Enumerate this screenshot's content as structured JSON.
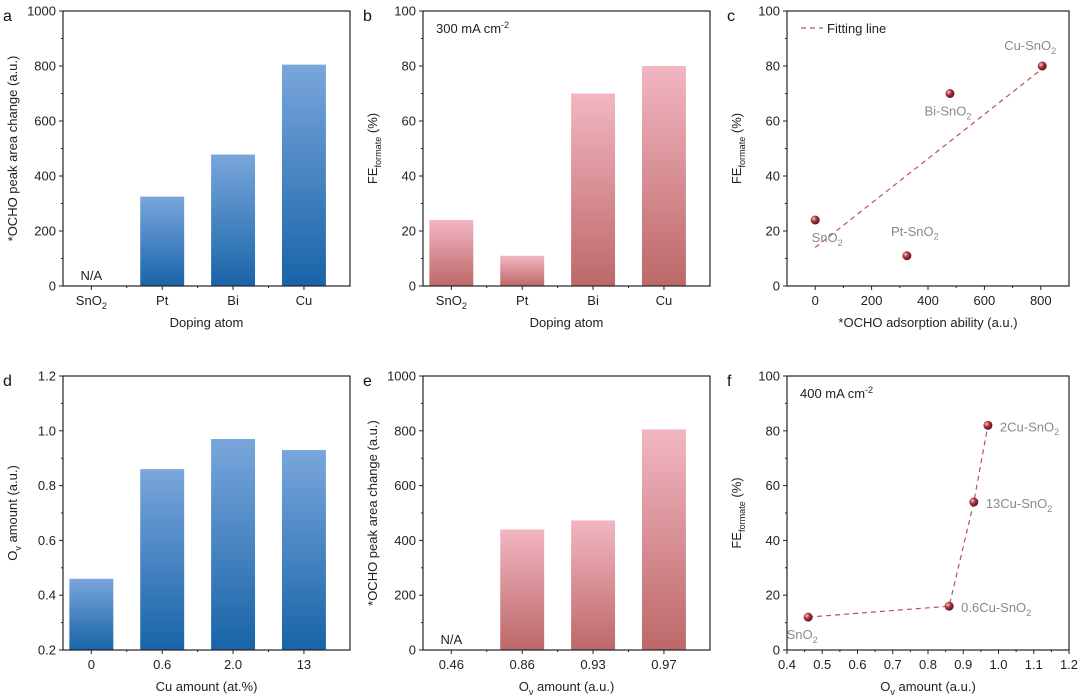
{
  "colors": {
    "blue_top": "#79a6dc",
    "blue_bottom": "#1864a8",
    "pink_top": "#f2b6c2",
    "pink_bottom": "#bd6868",
    "marker": "#a8333c",
    "fit_line": "#c0504d",
    "point_label": "#8a8a8a"
  },
  "chart_data": [
    {
      "panel": "a",
      "type": "bar",
      "categories": [
        "SnO_{2}",
        "Pt",
        "Bi",
        "Cu"
      ],
      "values": [
        null,
        325,
        478,
        805
      ],
      "annotations": [
        {
          "category": "SnO_{2}",
          "text": "N/A"
        }
      ],
      "xlabel": "Doping atom",
      "ylabel": "*OCHO peak area change (a.u.)",
      "ylim": [
        0,
        1000
      ],
      "yticks": [
        0,
        200,
        400,
        600,
        800,
        1000
      ],
      "color": "blue"
    },
    {
      "panel": "b",
      "type": "bar",
      "categories": [
        "SnO_{2}",
        "Pt",
        "Bi",
        "Cu"
      ],
      "values": [
        24,
        11,
        70,
        80
      ],
      "inset_text": "300 mA cm^{-2}",
      "xlabel": "Doping atom",
      "ylabel": "FE_{formate} (%)",
      "ylim": [
        0,
        100
      ],
      "yticks": [
        0,
        20,
        40,
        60,
        80,
        100
      ],
      "color": "pink"
    },
    {
      "panel": "c",
      "type": "scatter",
      "points": [
        {
          "x": 0,
          "y": 24,
          "label": "SnO_{2}"
        },
        {
          "x": 325,
          "y": 11,
          "label": "Pt-SnO_{2}"
        },
        {
          "x": 478,
          "y": 70,
          "label": "Bi-SnO_{2}"
        },
        {
          "x": 805,
          "y": 80,
          "label": "Cu-SnO_{2}"
        }
      ],
      "fit_line": {
        "name": "Fitting line",
        "x": [
          0,
          805
        ],
        "y": [
          14,
          79
        ]
      },
      "legend": "top-left",
      "xlabel": "*OCHO adsorption ability (a.u.)",
      "ylabel": "FE_{formate} (%)",
      "xlim": [
        -100,
        900
      ],
      "ylim": [
        0,
        100
      ],
      "xticks": [
        0,
        200,
        400,
        600,
        800
      ],
      "yticks": [
        0,
        20,
        40,
        60,
        80,
        100
      ]
    },
    {
      "panel": "d",
      "type": "bar",
      "categories": [
        "0",
        "0.6",
        "2.0",
        "13"
      ],
      "values": [
        0.46,
        0.86,
        0.97,
        0.93
      ],
      "xlabel": "Cu amount (at.%)",
      "ylabel": "O_{v} amount (a.u.)",
      "ylim": [
        0.2,
        1.2
      ],
      "yticks": [
        0.2,
        0.4,
        0.6,
        0.8,
        1.0,
        1.2
      ],
      "color": "blue"
    },
    {
      "panel": "e",
      "type": "bar",
      "categories": [
        "0.46",
        "0.86",
        "0.93",
        "0.97"
      ],
      "values": [
        null,
        440,
        473,
        805
      ],
      "annotations": [
        {
          "category": "0.46",
          "text": "N/A"
        }
      ],
      "xlabel": "O_{v} amount (a.u.)",
      "ylabel": "*OCHO peak area change (a.u.)",
      "ylim": [
        0,
        1000
      ],
      "yticks": [
        0,
        200,
        400,
        600,
        800,
        1000
      ],
      "color": "pink"
    },
    {
      "panel": "f",
      "type": "line",
      "points": [
        {
          "x": 0.46,
          "y": 12,
          "label": "SnO_{2}"
        },
        {
          "x": 0.86,
          "y": 16,
          "label": "0.6Cu-SnO_{2}"
        },
        {
          "x": 0.93,
          "y": 54,
          "label": "13Cu-SnO_{2}"
        },
        {
          "x": 0.97,
          "y": 82,
          "label": "2Cu-SnO_{2}"
        }
      ],
      "inset_text": "400 mA cm^{-2}",
      "xlabel": "O_{v} amount (a.u.)",
      "ylabel": "FE_{formate} (%)",
      "xlim": [
        0.4,
        1.2
      ],
      "ylim": [
        0,
        100
      ],
      "xticks": [
        0.4,
        0.5,
        0.6,
        0.7,
        0.8,
        0.9,
        1.0,
        1.1,
        1.2
      ],
      "yticks": [
        0,
        20,
        40,
        60,
        80,
        100
      ]
    }
  ]
}
